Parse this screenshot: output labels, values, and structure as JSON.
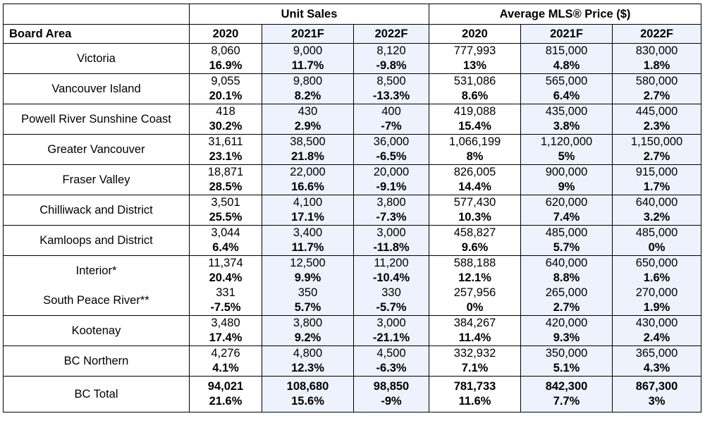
{
  "header": {
    "group_unit_sales": "Unit Sales",
    "group_avg_price": "Average MLS® Price ($)",
    "board_area": "Board Area",
    "years": [
      "2020",
      "2021F",
      "2022F",
      "2020",
      "2021F",
      "2022F"
    ]
  },
  "rows": [
    {
      "area": "Victoria",
      "values": [
        "8,060",
        "9,000",
        "8,120",
        "777,993",
        "815,000",
        "830,000"
      ],
      "pct": [
        "16.9%",
        "11.7%",
        "-9.8%",
        "13%",
        "4.8%",
        "1.8%"
      ]
    },
    {
      "area": "Vancouver Island",
      "values": [
        "9,055",
        "9,800",
        "8,500",
        "531,086",
        "565,000",
        "580,000"
      ],
      "pct": [
        "20.1%",
        "8.2%",
        "-13.3%",
        "8.6%",
        "6.4%",
        "2.7%"
      ]
    },
    {
      "area": "Powell River Sunshine Coast",
      "values": [
        "418",
        "430",
        "400",
        "419,088",
        "435,000",
        "445,000"
      ],
      "pct": [
        "30.2%",
        "2.9%",
        "-7%",
        "15.4%",
        "3.8%",
        "2.3%"
      ]
    },
    {
      "area": "Greater Vancouver",
      "values": [
        "31,611",
        "38,500",
        "36,000",
        "1,066,199",
        "1,120,000",
        "1,150,000"
      ],
      "pct": [
        "23.1%",
        "21.8%",
        "-6.5%",
        "8%",
        "5%",
        "2.7%"
      ]
    },
    {
      "area": "Fraser Valley",
      "values": [
        "18,871",
        "22,000",
        "20,000",
        "826,005",
        "900,000",
        "915,000"
      ],
      "pct": [
        "28.5%",
        "16.6%",
        "-9.1%",
        "14.4%",
        "9%",
        "1.7%"
      ]
    },
    {
      "area": "Chilliwack and District",
      "values": [
        "3,501",
        "4,100",
        "3,800",
        "577,430",
        "620,000",
        "640,000"
      ],
      "pct": [
        "25.5%",
        "17.1%",
        "-7.3%",
        "10.3%",
        "7.4%",
        "3.2%"
      ]
    },
    {
      "area": "Kamloops and District",
      "values": [
        "3,044",
        "3,400",
        "3,000",
        "458,827",
        "485,000",
        "485,000"
      ],
      "pct": [
        "6.4%",
        "11.7%",
        "-11.8%",
        "9.6%",
        "5.7%",
        "0%"
      ]
    },
    {
      "area": "Interior*",
      "values": [
        "11,374",
        "12,500",
        "11,200",
        "588,188",
        "640,000",
        "650,000"
      ],
      "pct": [
        "20.4%",
        "9.9%",
        "-10.4%",
        "12.1%",
        "8.8%",
        "1.6%"
      ]
    },
    {
      "area": "South Peace River**",
      "values": [
        "331",
        "350",
        "330",
        "257,956",
        "265,000",
        "270,000"
      ],
      "pct": [
        "-7.5%",
        "5.7%",
        "-5.7%",
        "0%",
        "2.7%",
        "1.9%"
      ]
    },
    {
      "area": "Kootenay",
      "values": [
        "3,480",
        "3,800",
        "3,000",
        "384,267",
        "420,000",
        "430,000"
      ],
      "pct": [
        "17.4%",
        "9.2%",
        "-21.1%",
        "11.4%",
        "9.3%",
        "2.4%"
      ]
    },
    {
      "area": "BC Northern",
      "values": [
        "4,276",
        "4,800",
        "4,500",
        "332,932",
        "350,000",
        "365,000"
      ],
      "pct": [
        "4.1%",
        "12.3%",
        "-6.3%",
        "7.1%",
        "5.1%",
        "4.3%"
      ]
    }
  ],
  "total": {
    "area": "BC Total",
    "values": [
      "94,021",
      "108,680",
      "98,850",
      "781,733",
      "842,300",
      "867,300"
    ],
    "pct": [
      "21.6%",
      "15.6%",
      "-9%",
      "11.6%",
      "7.7%",
      "3%"
    ]
  },
  "colors": {
    "shade": "#edf2fc",
    "border": "#000000"
  }
}
